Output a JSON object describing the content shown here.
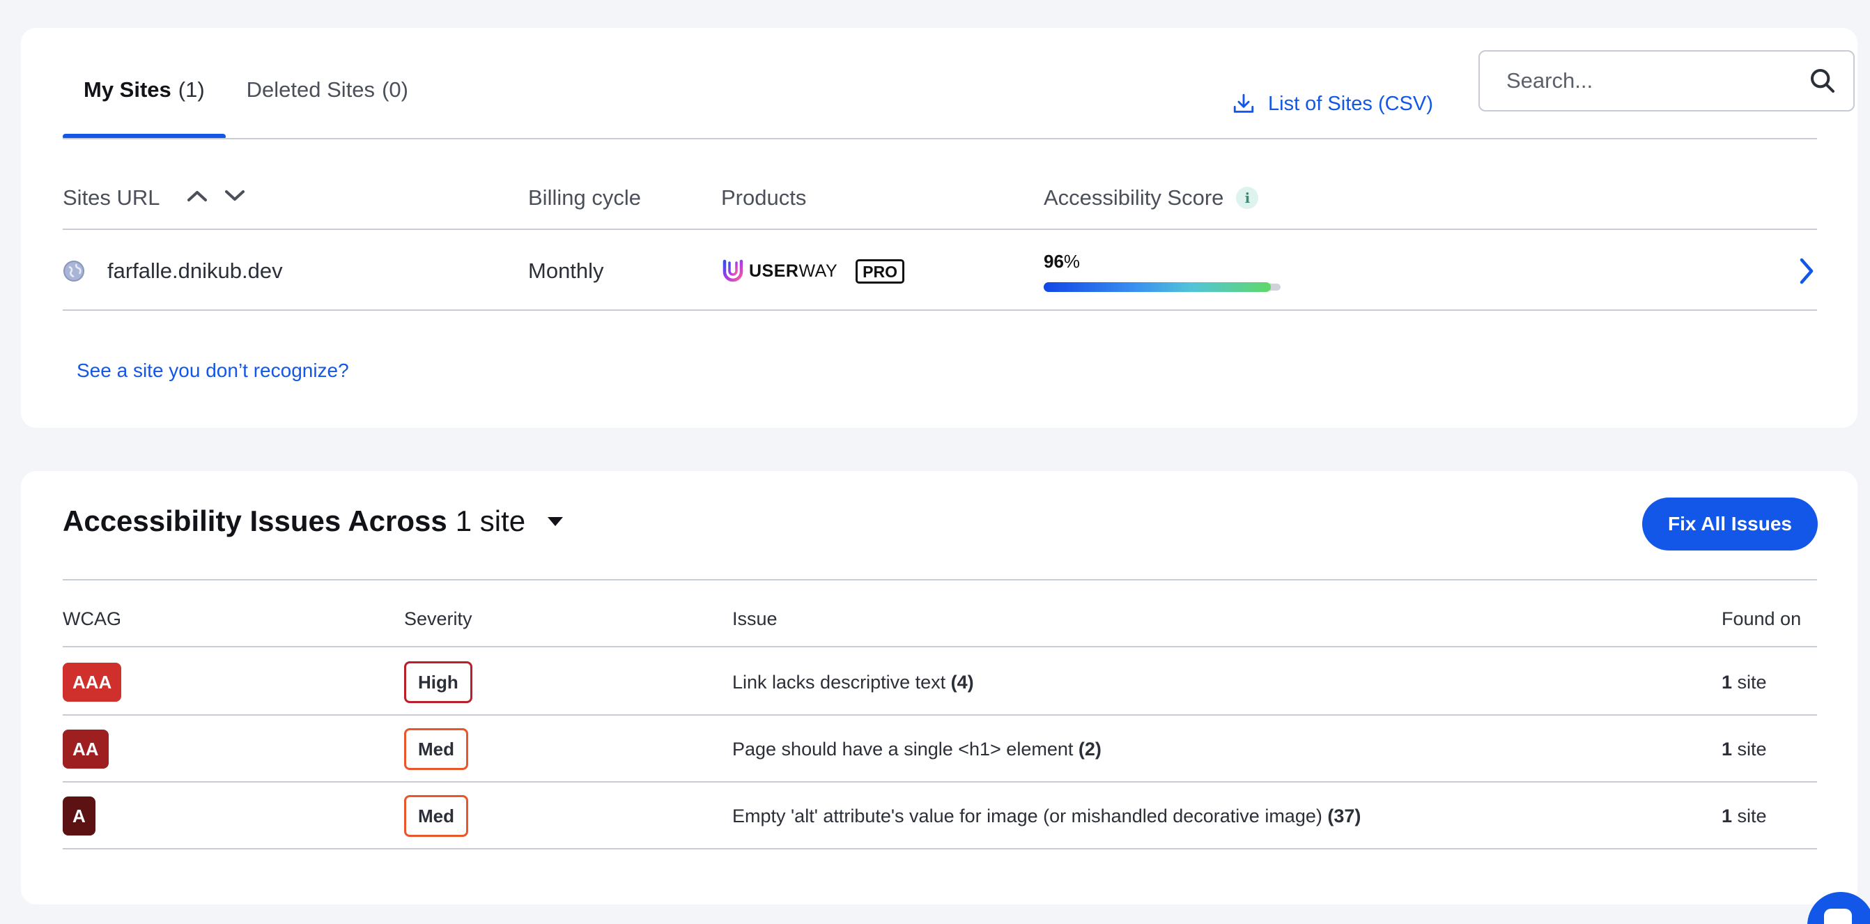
{
  "tabs": [
    {
      "label": "My Sites",
      "count": "(1)",
      "active": true
    },
    {
      "label": "Deleted Sites",
      "count": "(0)",
      "active": false
    }
  ],
  "toolbar": {
    "csv_label": "List of Sites (CSV)",
    "search_placeholder": "Search..."
  },
  "sites_table": {
    "headers": {
      "url": "Sites URL",
      "billing": "Billing cycle",
      "products": "Products",
      "score": "Accessibility Score",
      "info": "i"
    },
    "rows": [
      {
        "url": "farfalle.dnikub.dev",
        "billing": "Monthly",
        "product_brand_bold": "USER",
        "product_brand_light": "WAY",
        "product_tier": "PRO",
        "score_value": "96",
        "score_unit": "%",
        "score_fraction": 0.96
      }
    ]
  },
  "recognize_link": "See a site you don’t recognize?",
  "issues": {
    "title_bold": "Accessibility Issues Across",
    "title_count": "1 site",
    "fix_button": "Fix All Issues",
    "headers": {
      "wcag": "WCAG",
      "severity": "Severity",
      "issue": "Issue",
      "found": "Found on"
    },
    "rows": [
      {
        "wcag": "AAA",
        "wcag_color": "#d0302c",
        "severity": "High",
        "severity_color": "#b8202a",
        "issue": "Link lacks descriptive text",
        "issue_count": "(4)",
        "found_count": "1",
        "found_unit": "site"
      },
      {
        "wcag": "AA",
        "wcag_color": "#9e1f1f",
        "severity": "Med",
        "severity_color": "#e8572c",
        "issue": "Page should have a single <h1> element",
        "issue_count": "(2)",
        "found_count": "1",
        "found_unit": "site"
      },
      {
        "wcag": "A",
        "wcag_color": "#5c1212",
        "severity": "Med",
        "severity_color": "#e8572c",
        "issue": "Empty 'alt' attribute's value for image (or mishandled decorative image)",
        "issue_count": "(37)",
        "found_count": "1",
        "found_unit": "site"
      }
    ]
  },
  "colors": {
    "accent": "#1257e8",
    "background": "#f3f5f9"
  }
}
